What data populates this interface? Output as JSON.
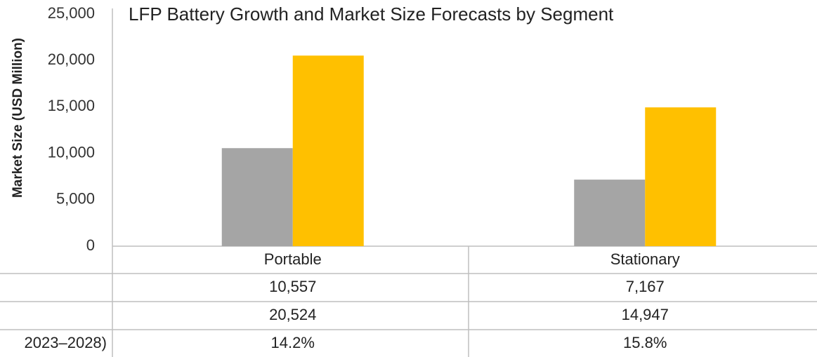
{
  "chart_data": {
    "type": "bar",
    "title": "LFP Battery Growth and Market Size Forecasts by Segment",
    "y_label": "Market Size (USD Million)",
    "categories": [
      "Portable",
      "Stationary"
    ],
    "series": [
      {
        "color": "#a5a5a5",
        "values": [
          10557,
          7167
        ],
        "value_labels": [
          "10,557",
          "7,167"
        ]
      },
      {
        "color": "#ffc000",
        "values": [
          20524,
          14947
        ],
        "value_labels": [
          "20,524",
          "14,947"
        ]
      }
    ],
    "cagr": {
      "label": "2023–2028)",
      "values": [
        14.2,
        15.8
      ],
      "value_labels": [
        "14.2%",
        "15.8%"
      ]
    },
    "ylim": [
      0,
      25000
    ],
    "yticks": [
      0,
      {
        "value": 5000,
        "label": "5,000"
      },
      {
        "value": 10000,
        "label": "10,000"
      },
      {
        "value": 15000,
        "label": "15,000"
      },
      {
        "value": 20000,
        "label": "20,000"
      },
      {
        "value": 25000,
        "label": "25,000"
      }
    ],
    "grid": false
  }
}
